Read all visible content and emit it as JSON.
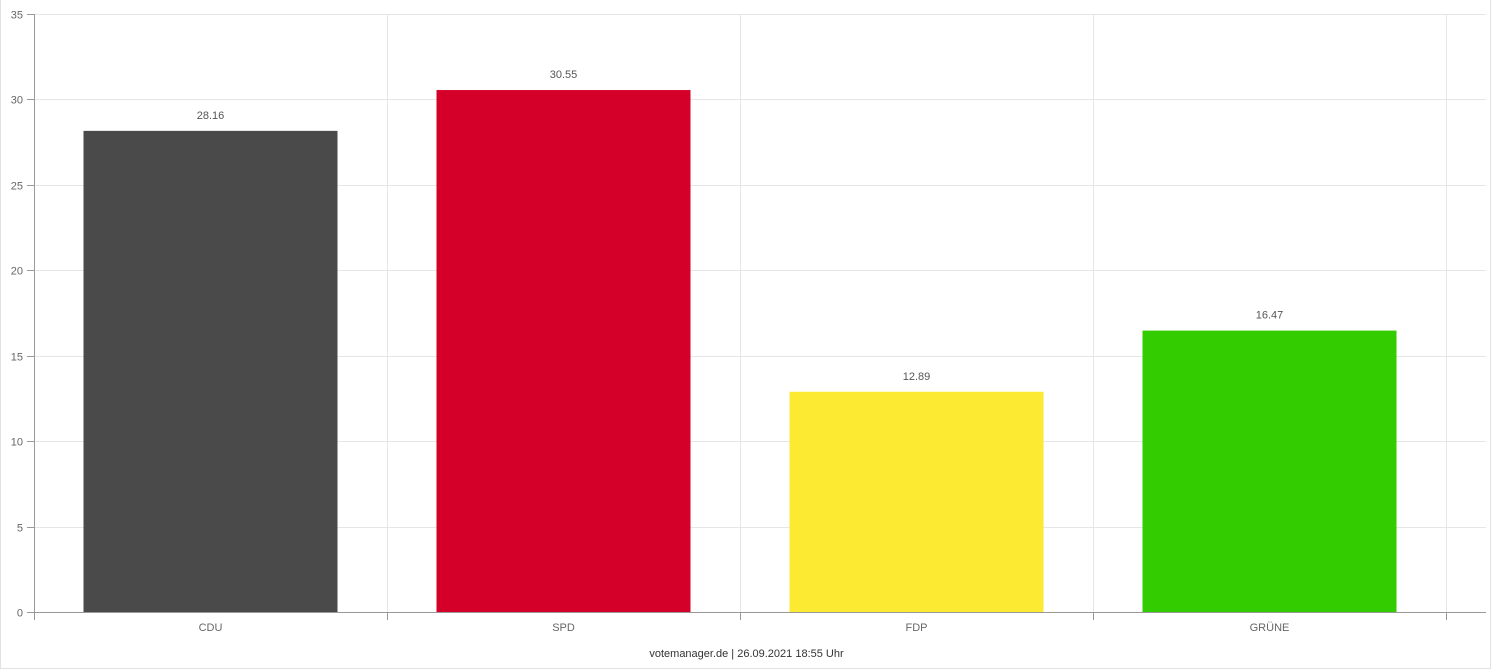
{
  "chart_data": {
    "type": "bar",
    "categories": [
      "CDU",
      "SPD",
      "FDP",
      "GRÜNE"
    ],
    "values": [
      28.16,
      30.55,
      12.89,
      16.47
    ],
    "colors": [
      "#4a4a4a",
      "#d50029",
      "#fbe932",
      "#33cc00"
    ],
    "value_labels": [
      "28.16",
      "30.55",
      "12.89",
      "16.47"
    ],
    "ylim": [
      0,
      35
    ],
    "yticks": [
      0,
      5,
      10,
      15,
      20,
      25,
      30,
      35
    ],
    "grid": true,
    "legend": "none"
  },
  "footer": {
    "source_text": "votemanager.de | 26.09.2021 18:55 Uhr"
  }
}
